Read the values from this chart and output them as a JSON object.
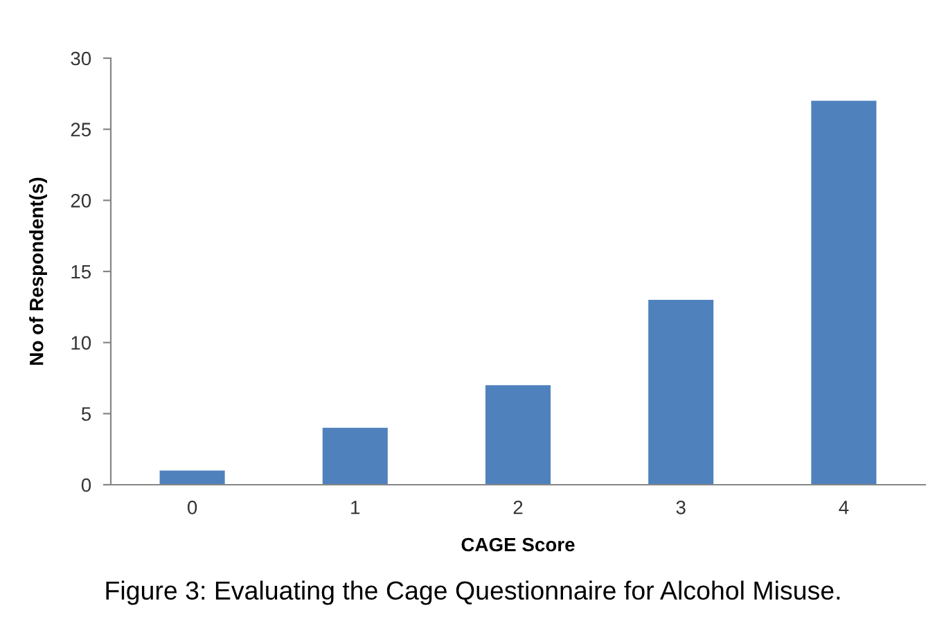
{
  "chart_data": {
    "type": "bar",
    "xlabel": "CAGE Score",
    "ylabel": "No of Respondent(s)",
    "categories": [
      "0",
      "1",
      "2",
      "3",
      "4"
    ],
    "values": [
      1,
      4,
      7,
      13,
      27
    ],
    "color": "#4f81bd",
    "ylim": [
      0,
      30
    ],
    "yticks": [
      0,
      5,
      10,
      15,
      20,
      25,
      30
    ],
    "grid": false,
    "legend": false,
    "annotations": [
      "Figure 3: Evaluating the Cage Questionnaire for Alcohol Misuse."
    ]
  }
}
